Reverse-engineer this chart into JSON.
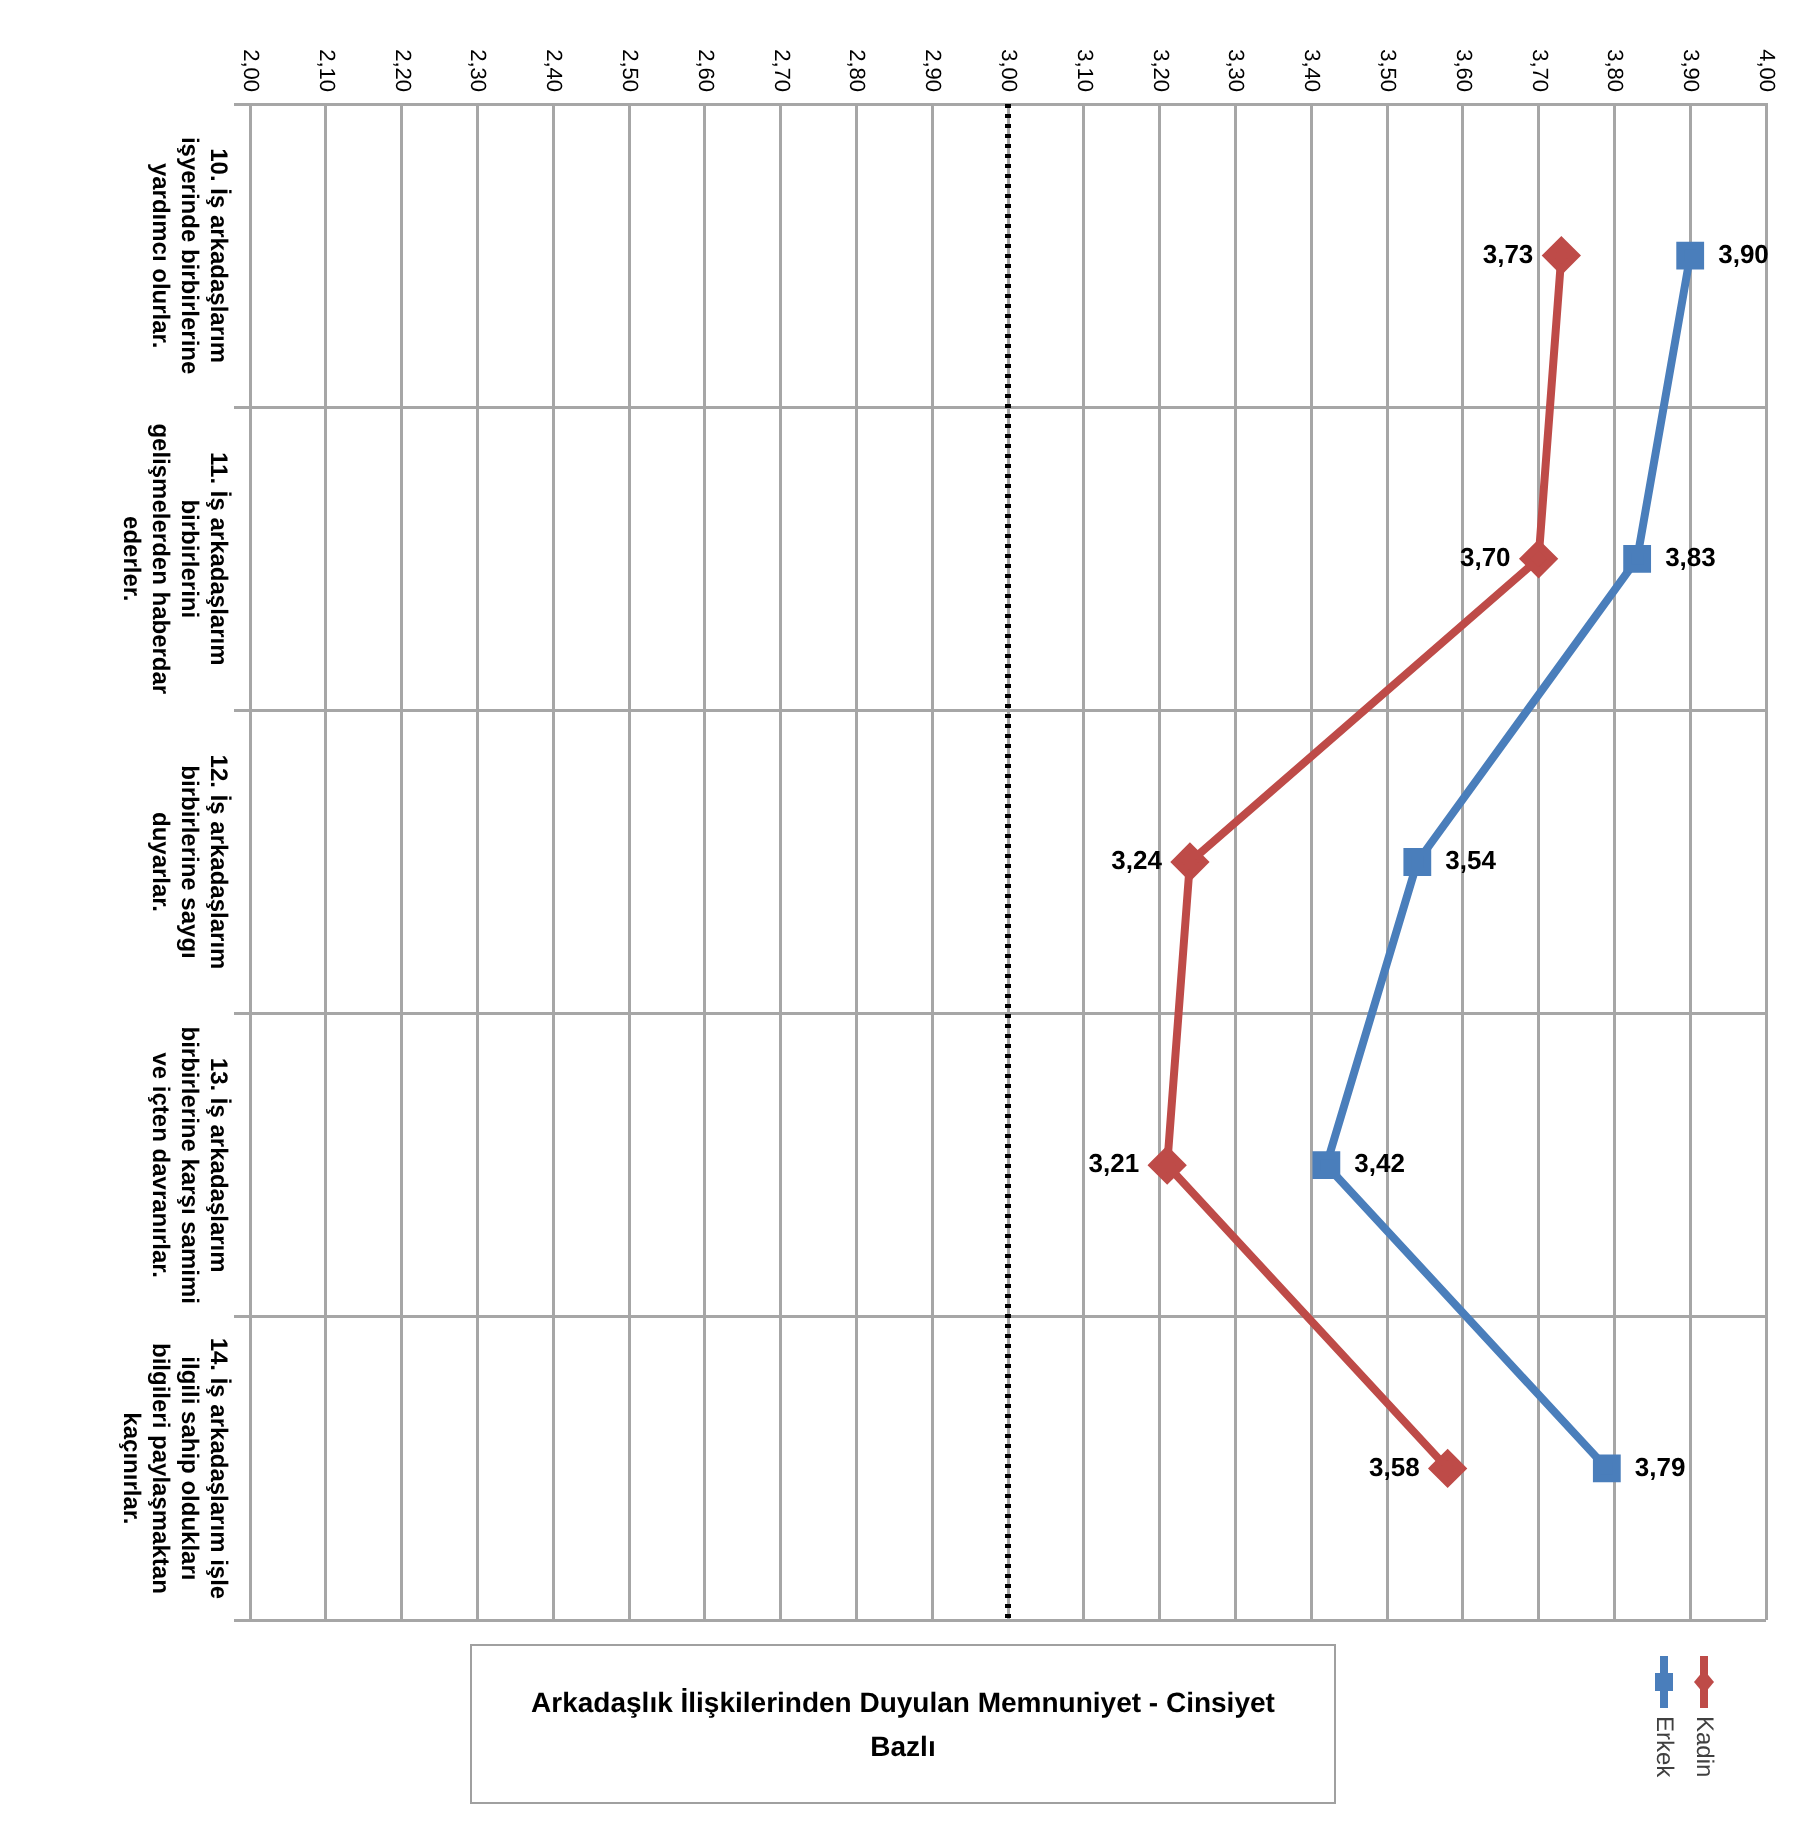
{
  "chart_data": {
    "type": "line",
    "orientation": "horizontal",
    "title": "Arkadaşlık İlişkilerinden Duyulan Memnuniyet - Cinsiyet Bazlı",
    "categories": [
      "10. İş arkadaşlarım işyerinde birbirlerine yardımcı olurlar.",
      "11. İş arkadaşlarım birbirlerini gelişmelerden haberdar ederler.",
      "12. İş arkadaşlarım birbirlerine saygı duyarlar.",
      "13. İş arkadaşlarım birbirlerine karşı samimi ve içten davranırlar.",
      "14. İş arkadaşlarım işle ilgili sahip oldukları bilgileri paylaşmaktan kaçınırlar."
    ],
    "series": [
      {
        "name": "Kadin",
        "color": "#be4b48",
        "marker": "diamond",
        "values": [
          3.73,
          3.7,
          3.24,
          3.21,
          3.58
        ],
        "value_labels": [
          "3,73",
          "3,70",
          "3,24",
          "3,21",
          "3,58"
        ]
      },
      {
        "name": "Erkek",
        "color": "#4a7ebb",
        "marker": "square",
        "values": [
          3.9,
          3.83,
          3.54,
          3.42,
          3.79
        ],
        "value_labels": [
          "3,90",
          "3,83",
          "3,54",
          "3,42",
          "3,79"
        ]
      }
    ],
    "xlim": [
      2,
      4
    ],
    "xticks": [
      {
        "value": 2,
        "label": "2,00"
      },
      {
        "value": 2.1,
        "label": "2,10"
      },
      {
        "value": 2.2,
        "label": "2,20"
      },
      {
        "value": 2.3,
        "label": "2,30"
      },
      {
        "value": 2.4,
        "label": "2,40"
      },
      {
        "value": 2.5,
        "label": "2,50"
      },
      {
        "value": 2.6,
        "label": "2,60"
      },
      {
        "value": 2.7,
        "label": "2,70"
      },
      {
        "value": 2.8,
        "label": "2,80"
      },
      {
        "value": 2.9,
        "label": "2,90"
      },
      {
        "value": 3,
        "label": "3,00"
      },
      {
        "value": 3.1,
        "label": "3,10"
      },
      {
        "value": 3.2,
        "label": "3,20"
      },
      {
        "value": 3.3,
        "label": "3,30"
      },
      {
        "value": 3.4,
        "label": "3,40"
      },
      {
        "value": 3.5,
        "label": "3,50"
      },
      {
        "value": 3.6,
        "label": "3,60"
      },
      {
        "value": 3.7,
        "label": "3,70"
      },
      {
        "value": 3.8,
        "label": "3,80"
      },
      {
        "value": 3.9,
        "label": "3,90"
      },
      {
        "value": 4,
        "label": "4,00"
      }
    ],
    "grid": true,
    "legend": "bottom right",
    "ref_lines": [
      {
        "axis": "x",
        "value": 3,
        "color": "#000000",
        "line_style": "dotted"
      }
    ]
  }
}
